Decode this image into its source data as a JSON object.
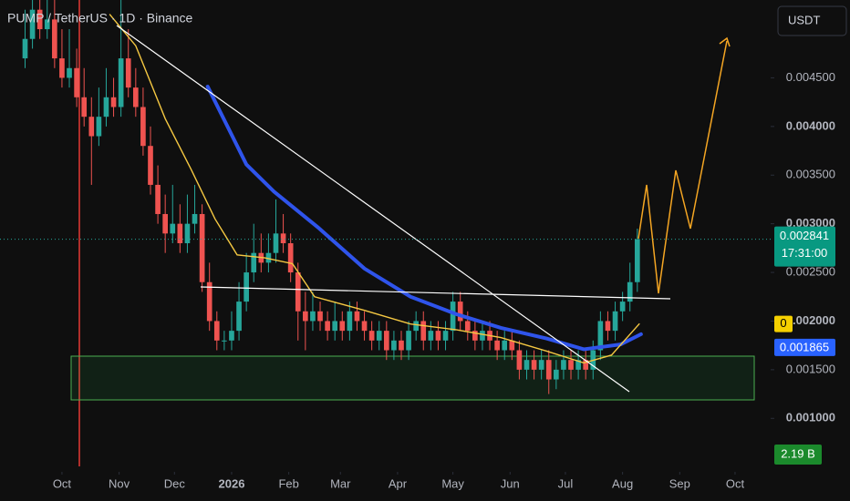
{
  "chart_data": {
    "type": "candlestick",
    "title": "PUMP / TetherUS · 1D · Binance",
    "currency": "USDT",
    "up_color": "#26a69a",
    "down_color": "#ef5350",
    "x": [
      -20,
      -16,
      -12,
      -8,
      -4,
      0,
      4,
      8,
      12,
      16,
      20,
      24,
      28,
      32,
      36,
      40,
      44,
      48,
      52,
      56,
      60,
      64,
      68,
      72,
      76,
      80,
      84,
      88,
      92,
      96,
      100,
      104,
      108,
      112,
      116,
      120,
      124,
      128,
      132,
      136,
      140,
      144,
      148,
      152,
      156,
      160,
      164,
      168,
      172,
      176,
      180,
      184,
      188,
      192,
      196,
      200,
      204,
      208,
      212,
      216,
      220,
      224,
      228,
      232,
      236,
      240,
      244,
      248,
      252,
      256,
      260,
      264,
      268,
      272,
      276,
      280,
      284,
      288,
      292,
      296,
      300,
      304,
      308,
      312
    ],
    "open": [
      0.0047,
      0.0049,
      0.0052,
      0.005,
      0.0051,
      0.0047,
      0.0045,
      0.0046,
      0.0043,
      0.0041,
      0.0039,
      0.0041,
      0.0043,
      0.0042,
      0.0047,
      0.0044,
      0.0042,
      0.0038,
      0.0034,
      0.0031,
      0.0029,
      0.003,
      0.0028,
      0.003,
      0.0031,
      0.0024,
      0.002,
      0.0018,
      0.0018,
      0.0019,
      0.0022,
      0.0025,
      0.0027,
      0.0026,
      0.0027,
      0.0029,
      0.0028,
      0.0025,
      0.0021,
      0.002,
      0.0021,
      0.002,
      0.0019,
      0.002,
      0.0019,
      0.0021,
      0.002,
      0.0019,
      0.0018,
      0.0019,
      0.0017,
      0.0018,
      0.0017,
      0.0019,
      0.002,
      0.0018,
      0.0019,
      0.0018,
      0.0019,
      0.0022,
      0.002,
      0.0019,
      0.0018,
      0.0019,
      0.0018,
      0.0017,
      0.0018,
      0.0017,
      0.0015,
      0.0016,
      0.0015,
      0.0016,
      0.0014,
      0.0015,
      0.0016,
      0.0015,
      0.0016,
      0.0015,
      0.0017,
      0.002,
      0.0019,
      0.0021,
      0.0022,
      0.0024
    ],
    "high": [
      0.0052,
      0.0054,
      0.0054,
      0.0053,
      0.0053,
      0.005,
      0.005,
      0.0048,
      0.0046,
      0.0043,
      0.0044,
      0.0046,
      0.0045,
      0.0053,
      0.005,
      0.0046,
      0.0044,
      0.004,
      0.0036,
      0.0033,
      0.0034,
      0.0032,
      0.0033,
      0.0034,
      0.0032,
      0.0026,
      0.0021,
      0.0019,
      0.0021,
      0.0024,
      0.0027,
      0.003,
      0.0029,
      0.0029,
      0.00325,
      0.0031,
      0.0029,
      0.0026,
      0.0023,
      0.0023,
      0.0022,
      0.0021,
      0.0022,
      0.0021,
      0.0022,
      0.0022,
      0.0021,
      0.002,
      0.002,
      0.002,
      0.0019,
      0.0019,
      0.002,
      0.0021,
      0.0021,
      0.002,
      0.002,
      0.002,
      0.0023,
      0.0023,
      0.0021,
      0.002,
      0.002,
      0.002,
      0.0019,
      0.0019,
      0.0019,
      0.0018,
      0.0017,
      0.0017,
      0.0017,
      0.0017,
      0.0016,
      0.0017,
      0.0017,
      0.0017,
      0.0017,
      0.0018,
      0.0021,
      0.0021,
      0.0022,
      0.0023,
      0.0026,
      0.00295
    ],
    "low": [
      0.0046,
      0.0048,
      0.0049,
      0.0049,
      0.0046,
      0.0044,
      0.0044,
      0.0042,
      0.004,
      0.0034,
      0.0038,
      0.004,
      0.0041,
      0.0041,
      0.0043,
      0.0041,
      0.0037,
      0.0033,
      0.003,
      0.0027,
      0.0028,
      0.0027,
      0.0027,
      0.0029,
      0.0023,
      0.0019,
      0.0017,
      0.0017,
      0.0017,
      0.0018,
      0.0021,
      0.0024,
      0.0025,
      0.0025,
      0.0026,
      0.0027,
      0.0024,
      0.0018,
      0.0017,
      0.0019,
      0.0019,
      0.0018,
      0.0018,
      0.0018,
      0.0018,
      0.0019,
      0.0018,
      0.0017,
      0.0017,
      0.0016,
      0.0016,
      0.0016,
      0.0016,
      0.0018,
      0.0017,
      0.0017,
      0.0017,
      0.0017,
      0.0018,
      0.0019,
      0.0018,
      0.0017,
      0.0017,
      0.0017,
      0.0016,
      0.0016,
      0.0016,
      0.0014,
      0.0014,
      0.0014,
      0.0014,
      0.00125,
      0.0013,
      0.0014,
      0.0014,
      0.0014,
      0.0014,
      0.0014,
      0.0016,
      0.0018,
      0.0018,
      0.002,
      0.0021,
      0.0023
    ],
    "close": [
      0.0049,
      0.0052,
      0.005,
      0.0051,
      0.0047,
      0.0045,
      0.0046,
      0.0043,
      0.0041,
      0.0039,
      0.0041,
      0.0043,
      0.0042,
      0.0047,
      0.0044,
      0.0042,
      0.0038,
      0.0034,
      0.0031,
      0.0029,
      0.003,
      0.0028,
      0.003,
      0.0031,
      0.0024,
      0.002,
      0.0018,
      0.0018,
      0.0019,
      0.0022,
      0.0025,
      0.0027,
      0.0026,
      0.0027,
      0.0029,
      0.0028,
      0.0025,
      0.0021,
      0.002,
      0.0021,
      0.002,
      0.0019,
      0.002,
      0.0019,
      0.0021,
      0.002,
      0.0019,
      0.0018,
      0.0019,
      0.0017,
      0.0018,
      0.0017,
      0.0019,
      0.002,
      0.0018,
      0.0019,
      0.0018,
      0.0019,
      0.0022,
      0.002,
      0.0019,
      0.0018,
      0.0019,
      0.0018,
      0.0017,
      0.0018,
      0.0017,
      0.0015,
      0.0016,
      0.0015,
      0.0016,
      0.0014,
      0.0015,
      0.0016,
      0.0015,
      0.0016,
      0.0015,
      0.0017,
      0.002,
      0.0019,
      0.0021,
      0.0022,
      0.0024,
      0.002841
    ],
    "last_price": 0.002841,
    "countdown": "17:31:00",
    "moving_averages": [
      {
        "color": "#2f54eb",
        "width": 4,
        "x": [
          79,
          100,
          115,
          139,
          164,
          189,
          214,
          238,
          263,
          283,
          303,
          314
        ],
        "values": [
          0.00441,
          0.00361,
          0.00333,
          0.00296,
          0.00254,
          0.00225,
          0.00207,
          0.00193,
          0.00182,
          0.00171,
          0.00176,
          0.001865
        ]
      },
      {
        "color": "#f5c842",
        "width": 1.4,
        "label": "0",
        "x": [
          26,
          40,
          56,
          70,
          83,
          95,
          110,
          125,
          137,
          164,
          189,
          214,
          238,
          263,
          283,
          298,
          313
        ],
        "values": [
          0.00515,
          0.00483,
          0.00408,
          0.00356,
          0.00305,
          0.00268,
          0.00265,
          0.00259,
          0.00225,
          0.00211,
          0.00197,
          0.00191,
          0.00183,
          0.00169,
          0.00157,
          0.00165,
          0.00197
        ]
      }
    ],
    "volume_label": "2.19 B",
    "xlim": [
      -33.6,
      384.3
    ],
    "ylim": [
      0.00045,
      0.0053
    ],
    "xticks": [
      {
        "value": 0,
        "label": "Oct"
      },
      {
        "value": 31,
        "label": "Nov"
      },
      {
        "value": 61,
        "label": "Dec"
      },
      {
        "value": 92,
        "label": "2026"
      },
      {
        "value": 123,
        "label": "Feb"
      },
      {
        "value": 151,
        "label": "Mar"
      },
      {
        "value": 182,
        "label": "Apr"
      },
      {
        "value": 212,
        "label": "May"
      },
      {
        "value": 243,
        "label": "Jun"
      },
      {
        "value": 273,
        "label": "Jul"
      },
      {
        "value": 304,
        "label": "Aug"
      },
      {
        "value": 335,
        "label": "Sep"
      },
      {
        "value": 365,
        "label": "Oct"
      }
    ],
    "yticks": [
      {
        "value": 0.001,
        "label": "0.001000"
      },
      {
        "value": 0.0015,
        "label": "0.001500"
      },
      {
        "value": 0.002,
        "label": "0.002000"
      },
      {
        "value": 0.0025,
        "label": "0.002500"
      },
      {
        "value": 0.003,
        "label": "0.003000"
      },
      {
        "value": 0.0035,
        "label": "0.003500"
      },
      {
        "value": 0.004,
        "label": "0.004000"
      },
      {
        "value": 0.0045,
        "label": "0.004500"
      }
    ]
  }
}
